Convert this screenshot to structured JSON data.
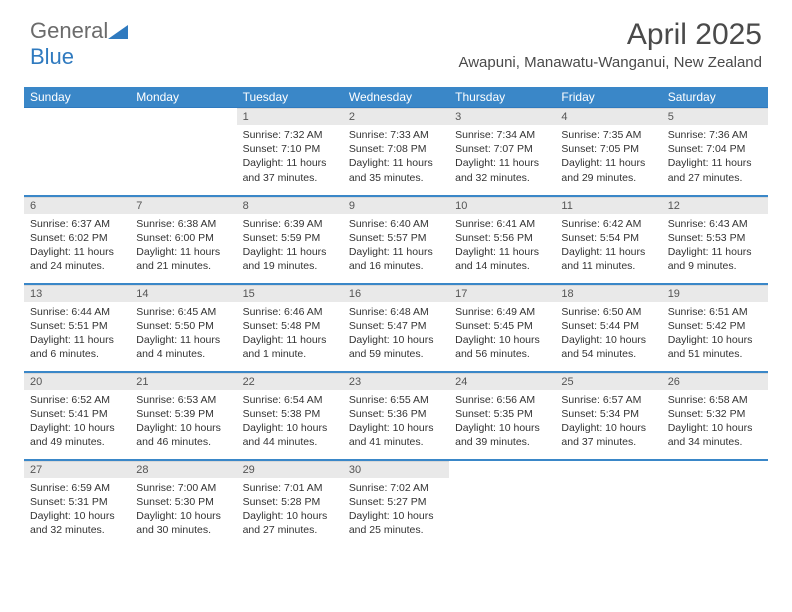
{
  "brand": {
    "part1": "General",
    "part2": "Blue"
  },
  "title": "April 2025",
  "location": "Awapuni, Manawatu-Wanganui, New Zealand",
  "weekdays": [
    "Sunday",
    "Monday",
    "Tuesday",
    "Wednesday",
    "Thursday",
    "Friday",
    "Saturday"
  ],
  "colors": {
    "header_bg": "#3a87c8",
    "header_text": "#ffffff",
    "daynum_bg": "#e9e9e9",
    "row_border": "#3a87c8",
    "text": "#333333"
  },
  "weeks": [
    [
      {
        "day": "",
        "sunrise": "",
        "sunset": "",
        "daylight": ""
      },
      {
        "day": "",
        "sunrise": "",
        "sunset": "",
        "daylight": ""
      },
      {
        "day": "1",
        "sunrise": "Sunrise: 7:32 AM",
        "sunset": "Sunset: 7:10 PM",
        "daylight": "Daylight: 11 hours and 37 minutes."
      },
      {
        "day": "2",
        "sunrise": "Sunrise: 7:33 AM",
        "sunset": "Sunset: 7:08 PM",
        "daylight": "Daylight: 11 hours and 35 minutes."
      },
      {
        "day": "3",
        "sunrise": "Sunrise: 7:34 AM",
        "sunset": "Sunset: 7:07 PM",
        "daylight": "Daylight: 11 hours and 32 minutes."
      },
      {
        "day": "4",
        "sunrise": "Sunrise: 7:35 AM",
        "sunset": "Sunset: 7:05 PM",
        "daylight": "Daylight: 11 hours and 29 minutes."
      },
      {
        "day": "5",
        "sunrise": "Sunrise: 7:36 AM",
        "sunset": "Sunset: 7:04 PM",
        "daylight": "Daylight: 11 hours and 27 minutes."
      }
    ],
    [
      {
        "day": "6",
        "sunrise": "Sunrise: 6:37 AM",
        "sunset": "Sunset: 6:02 PM",
        "daylight": "Daylight: 11 hours and 24 minutes."
      },
      {
        "day": "7",
        "sunrise": "Sunrise: 6:38 AM",
        "sunset": "Sunset: 6:00 PM",
        "daylight": "Daylight: 11 hours and 21 minutes."
      },
      {
        "day": "8",
        "sunrise": "Sunrise: 6:39 AM",
        "sunset": "Sunset: 5:59 PM",
        "daylight": "Daylight: 11 hours and 19 minutes."
      },
      {
        "day": "9",
        "sunrise": "Sunrise: 6:40 AM",
        "sunset": "Sunset: 5:57 PM",
        "daylight": "Daylight: 11 hours and 16 minutes."
      },
      {
        "day": "10",
        "sunrise": "Sunrise: 6:41 AM",
        "sunset": "Sunset: 5:56 PM",
        "daylight": "Daylight: 11 hours and 14 minutes."
      },
      {
        "day": "11",
        "sunrise": "Sunrise: 6:42 AM",
        "sunset": "Sunset: 5:54 PM",
        "daylight": "Daylight: 11 hours and 11 minutes."
      },
      {
        "day": "12",
        "sunrise": "Sunrise: 6:43 AM",
        "sunset": "Sunset: 5:53 PM",
        "daylight": "Daylight: 11 hours and 9 minutes."
      }
    ],
    [
      {
        "day": "13",
        "sunrise": "Sunrise: 6:44 AM",
        "sunset": "Sunset: 5:51 PM",
        "daylight": "Daylight: 11 hours and 6 minutes."
      },
      {
        "day": "14",
        "sunrise": "Sunrise: 6:45 AM",
        "sunset": "Sunset: 5:50 PM",
        "daylight": "Daylight: 11 hours and 4 minutes."
      },
      {
        "day": "15",
        "sunrise": "Sunrise: 6:46 AM",
        "sunset": "Sunset: 5:48 PM",
        "daylight": "Daylight: 11 hours and 1 minute."
      },
      {
        "day": "16",
        "sunrise": "Sunrise: 6:48 AM",
        "sunset": "Sunset: 5:47 PM",
        "daylight": "Daylight: 10 hours and 59 minutes."
      },
      {
        "day": "17",
        "sunrise": "Sunrise: 6:49 AM",
        "sunset": "Sunset: 5:45 PM",
        "daylight": "Daylight: 10 hours and 56 minutes."
      },
      {
        "day": "18",
        "sunrise": "Sunrise: 6:50 AM",
        "sunset": "Sunset: 5:44 PM",
        "daylight": "Daylight: 10 hours and 54 minutes."
      },
      {
        "day": "19",
        "sunrise": "Sunrise: 6:51 AM",
        "sunset": "Sunset: 5:42 PM",
        "daylight": "Daylight: 10 hours and 51 minutes."
      }
    ],
    [
      {
        "day": "20",
        "sunrise": "Sunrise: 6:52 AM",
        "sunset": "Sunset: 5:41 PM",
        "daylight": "Daylight: 10 hours and 49 minutes."
      },
      {
        "day": "21",
        "sunrise": "Sunrise: 6:53 AM",
        "sunset": "Sunset: 5:39 PM",
        "daylight": "Daylight: 10 hours and 46 minutes."
      },
      {
        "day": "22",
        "sunrise": "Sunrise: 6:54 AM",
        "sunset": "Sunset: 5:38 PM",
        "daylight": "Daylight: 10 hours and 44 minutes."
      },
      {
        "day": "23",
        "sunrise": "Sunrise: 6:55 AM",
        "sunset": "Sunset: 5:36 PM",
        "daylight": "Daylight: 10 hours and 41 minutes."
      },
      {
        "day": "24",
        "sunrise": "Sunrise: 6:56 AM",
        "sunset": "Sunset: 5:35 PM",
        "daylight": "Daylight: 10 hours and 39 minutes."
      },
      {
        "day": "25",
        "sunrise": "Sunrise: 6:57 AM",
        "sunset": "Sunset: 5:34 PM",
        "daylight": "Daylight: 10 hours and 37 minutes."
      },
      {
        "day": "26",
        "sunrise": "Sunrise: 6:58 AM",
        "sunset": "Sunset: 5:32 PM",
        "daylight": "Daylight: 10 hours and 34 minutes."
      }
    ],
    [
      {
        "day": "27",
        "sunrise": "Sunrise: 6:59 AM",
        "sunset": "Sunset: 5:31 PM",
        "daylight": "Daylight: 10 hours and 32 minutes."
      },
      {
        "day": "28",
        "sunrise": "Sunrise: 7:00 AM",
        "sunset": "Sunset: 5:30 PM",
        "daylight": "Daylight: 10 hours and 30 minutes."
      },
      {
        "day": "29",
        "sunrise": "Sunrise: 7:01 AM",
        "sunset": "Sunset: 5:28 PM",
        "daylight": "Daylight: 10 hours and 27 minutes."
      },
      {
        "day": "30",
        "sunrise": "Sunrise: 7:02 AM",
        "sunset": "Sunset: 5:27 PM",
        "daylight": "Daylight: 10 hours and 25 minutes."
      },
      {
        "day": "",
        "sunrise": "",
        "sunset": "",
        "daylight": ""
      },
      {
        "day": "",
        "sunrise": "",
        "sunset": "",
        "daylight": ""
      },
      {
        "day": "",
        "sunrise": "",
        "sunset": "",
        "daylight": ""
      }
    ]
  ]
}
